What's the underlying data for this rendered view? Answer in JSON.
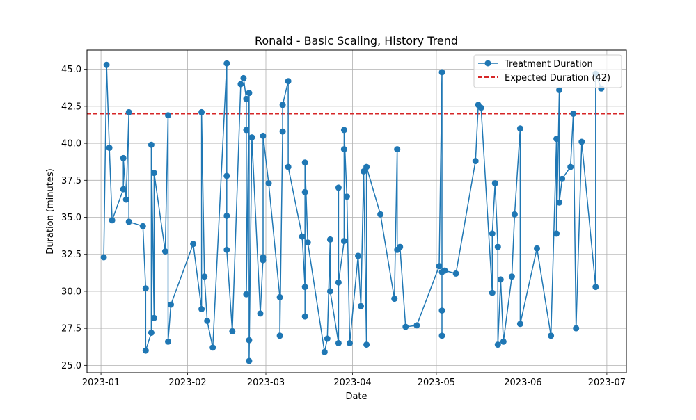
{
  "chart_data": {
    "type": "line",
    "title": "Ronald - Basic Scaling, History Trend",
    "xlabel": "Date",
    "ylabel": "Duration (minutes)",
    "x_axis_type": "date",
    "xlim": [
      "2022-12-27",
      "2023-07-08"
    ],
    "ylim": [
      24.5,
      46.3
    ],
    "xticks": [
      "2023-01-01",
      "2023-02-01",
      "2023-03-01",
      "2023-04-01",
      "2023-05-01",
      "2023-06-01",
      "2023-07-01"
    ],
    "xtick_labels": [
      "2023-01",
      "2023-02",
      "2023-03",
      "2023-04",
      "2023-05",
      "2023-06",
      "2023-07"
    ],
    "yticks": [
      25.0,
      27.5,
      30.0,
      32.5,
      35.0,
      37.5,
      40.0,
      42.5,
      45.0
    ],
    "ytick_labels": [
      "25.0",
      "27.5",
      "30.0",
      "32.5",
      "35.0",
      "37.5",
      "40.0",
      "42.5",
      "45.0"
    ],
    "grid": true,
    "legend_position": "top-right",
    "series": [
      {
        "name": "Treatment Duration",
        "color": "#1f77b4",
        "marker": "circle",
        "points": [
          [
            "2023-01-02",
            32.3
          ],
          [
            "2023-01-03",
            45.3
          ],
          [
            "2023-01-04",
            39.7
          ],
          [
            "2023-01-05",
            34.8
          ],
          [
            "2023-01-09",
            36.9
          ],
          [
            "2023-01-09",
            39.0
          ],
          [
            "2023-01-10",
            36.2
          ],
          [
            "2023-01-11",
            42.1
          ],
          [
            "2023-01-11",
            34.7
          ],
          [
            "2023-01-16",
            34.4
          ],
          [
            "2023-01-17",
            30.2
          ],
          [
            "2023-01-17",
            26.0
          ],
          [
            "2023-01-19",
            27.2
          ],
          [
            "2023-01-19",
            39.9
          ],
          [
            "2023-01-20",
            28.2
          ],
          [
            "2023-01-20",
            38.0
          ],
          [
            "2023-01-24",
            32.7
          ],
          [
            "2023-01-25",
            41.9
          ],
          [
            "2023-01-25",
            26.6
          ],
          [
            "2023-01-26",
            29.1
          ],
          [
            "2023-02-03",
            33.2
          ],
          [
            "2023-02-06",
            28.8
          ],
          [
            "2023-02-06",
            42.1
          ],
          [
            "2023-02-07",
            31.0
          ],
          [
            "2023-02-08",
            28.0
          ],
          [
            "2023-02-10",
            26.2
          ],
          [
            "2023-02-15",
            45.4
          ],
          [
            "2023-02-15",
            37.8
          ],
          [
            "2023-02-15",
            35.1
          ],
          [
            "2023-02-15",
            32.8
          ],
          [
            "2023-02-17",
            27.3
          ],
          [
            "2023-02-20",
            44.0
          ],
          [
            "2023-02-21",
            44.4
          ],
          [
            "2023-02-22",
            43.0
          ],
          [
            "2023-02-22",
            40.9
          ],
          [
            "2023-02-22",
            29.8
          ],
          [
            "2023-02-23",
            43.4
          ],
          [
            "2023-02-23",
            26.7
          ],
          [
            "2023-02-23",
            25.3
          ],
          [
            "2023-02-24",
            40.4
          ],
          [
            "2023-02-27",
            28.5
          ],
          [
            "2023-02-28",
            32.3
          ],
          [
            "2023-02-28",
            32.1
          ],
          [
            "2023-02-28",
            40.5
          ],
          [
            "2023-03-02",
            37.3
          ],
          [
            "2023-03-06",
            29.6
          ],
          [
            "2023-03-06",
            27.0
          ],
          [
            "2023-03-07",
            40.8
          ],
          [
            "2023-03-07",
            42.6
          ],
          [
            "2023-03-09",
            44.2
          ],
          [
            "2023-03-09",
            38.4
          ],
          [
            "2023-03-14",
            33.7
          ],
          [
            "2023-03-15",
            30.3
          ],
          [
            "2023-03-15",
            28.3
          ],
          [
            "2023-03-15",
            36.7
          ],
          [
            "2023-03-15",
            38.7
          ],
          [
            "2023-03-16",
            33.3
          ],
          [
            "2023-03-22",
            25.9
          ],
          [
            "2023-03-23",
            26.8
          ],
          [
            "2023-03-24",
            33.5
          ],
          [
            "2023-03-24",
            30.0
          ],
          [
            "2023-03-27",
            26.5
          ],
          [
            "2023-03-27",
            37.0
          ],
          [
            "2023-03-27",
            30.6
          ],
          [
            "2023-03-29",
            33.4
          ],
          [
            "2023-03-29",
            39.6
          ],
          [
            "2023-03-29",
            40.9
          ],
          [
            "2023-03-30",
            36.4
          ],
          [
            "2023-03-31",
            26.5
          ],
          [
            "2023-04-03",
            32.4
          ],
          [
            "2023-04-04",
            29.0
          ],
          [
            "2023-04-05",
            38.1
          ],
          [
            "2023-04-06",
            26.4
          ],
          [
            "2023-04-06",
            38.4
          ],
          [
            "2023-04-11",
            35.2
          ],
          [
            "2023-04-16",
            29.5
          ],
          [
            "2023-04-17",
            39.6
          ],
          [
            "2023-04-17",
            32.8
          ],
          [
            "2023-04-18",
            33.0
          ],
          [
            "2023-04-20",
            27.6
          ],
          [
            "2023-04-24",
            27.7
          ],
          [
            "2023-05-02",
            31.7
          ],
          [
            "2023-05-03",
            44.8
          ],
          [
            "2023-05-03",
            28.7
          ],
          [
            "2023-05-03",
            27.0
          ],
          [
            "2023-05-03",
            31.3
          ],
          [
            "2023-05-04",
            31.4
          ],
          [
            "2023-05-08",
            31.2
          ],
          [
            "2023-05-15",
            38.8
          ],
          [
            "2023-05-16",
            42.6
          ],
          [
            "2023-05-17",
            42.4
          ],
          [
            "2023-05-21",
            29.9
          ],
          [
            "2023-05-21",
            33.9
          ],
          [
            "2023-05-22",
            37.3
          ],
          [
            "2023-05-23",
            33.0
          ],
          [
            "2023-05-23",
            26.4
          ],
          [
            "2023-05-24",
            30.8
          ],
          [
            "2023-05-25",
            26.6
          ],
          [
            "2023-05-28",
            31.0
          ],
          [
            "2023-05-29",
            35.2
          ],
          [
            "2023-05-31",
            41.0
          ],
          [
            "2023-05-31",
            27.8
          ],
          [
            "2023-06-06",
            32.9
          ],
          [
            "2023-06-11",
            27.0
          ],
          [
            "2023-06-13",
            40.3
          ],
          [
            "2023-06-13",
            33.9
          ],
          [
            "2023-06-14",
            43.6
          ],
          [
            "2023-06-14",
            36.0
          ],
          [
            "2023-06-15",
            37.6
          ],
          [
            "2023-06-18",
            38.4
          ],
          [
            "2023-06-19",
            42.0
          ],
          [
            "2023-06-20",
            27.5
          ],
          [
            "2023-06-22",
            40.1
          ],
          [
            "2023-06-27",
            30.3
          ],
          [
            "2023-06-27",
            44.7
          ],
          [
            "2023-06-29",
            43.7
          ]
        ]
      }
    ],
    "reference_line": {
      "name": "Expected Duration (42)",
      "value": 42,
      "color": "#d62728",
      "style": "dashed"
    }
  }
}
